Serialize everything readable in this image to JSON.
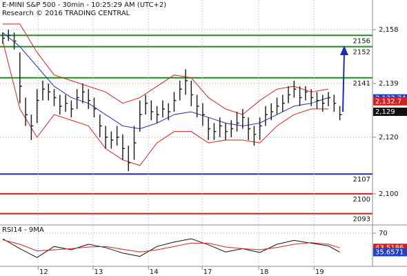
{
  "chart_data": [
    {
      "type": "ohlc",
      "title": "E-MINI S&P 500 - 30min - 10:25:29 AM (UTC+2)",
      "subtitle": "Research © 2016 TRADING CENTRAL",
      "xlim": [
        0,
        64
      ],
      "ylim": [
        2089,
        2168.5
      ],
      "yticks": [
        {
          "value": 2158,
          "label": "2,158"
        },
        {
          "value": 2139,
          "label": "2,139"
        },
        {
          "value": 2120,
          "label": "2,120"
        },
        {
          "value": 2100,
          "label": "2,100"
        }
      ],
      "grid": true,
      "bar_color": "#222222",
      "high": [
        2157,
        2158,
        2157,
        2150,
        2134,
        2128,
        2137,
        2140,
        2139,
        2137,
        2135,
        2135,
        2133,
        2137,
        2139,
        2137,
        2134,
        2128,
        2124,
        2122,
        2124,
        2121,
        2117,
        2124,
        2133,
        2135,
        2133,
        2131,
        2133,
        2132,
        2136,
        2140,
        2144,
        2140,
        2135,
        2132,
        2127,
        2125,
        2127,
        2125,
        2126,
        2129,
        2130,
        2127,
        2124,
        2127,
        2131,
        2132,
        2134,
        2135,
        2138,
        2140,
        2138,
        2138,
        2137,
        2136,
        2135,
        2136,
        2135,
        2131
      ],
      "low": [
        2153,
        2154,
        2151,
        2132,
        2124,
        2119,
        2125,
        2133,
        2133,
        2131,
        2128,
        2129,
        2127,
        2130,
        2132,
        2130,
        2127,
        2120,
        2116,
        2116,
        2117,
        2112,
        2108,
        2112,
        2122,
        2128,
        2126,
        2125,
        2127,
        2126,
        2129,
        2133,
        2135,
        2131,
        2127,
        2124,
        2119,
        2119,
        2120,
        2119,
        2120,
        2122,
        2123,
        2119,
        2117,
        2119,
        2124,
        2126,
        2128,
        2129,
        2132,
        2134,
        2131,
        2133,
        2131,
        2130,
        2129,
        2131,
        2129,
        2126
      ],
      "close": [
        2155,
        2156,
        2154,
        2138,
        2128,
        2124,
        2133,
        2137,
        2136,
        2134,
        2131,
        2132,
        2130,
        2134,
        2136,
        2133,
        2130,
        2124,
        2120,
        2119,
        2120,
        2116,
        2111,
        2118,
        2128,
        2132,
        2129,
        2128,
        2130,
        2129,
        2133,
        2137,
        2140,
        2135,
        2131,
        2128,
        2123,
        2122,
        2124,
        2122,
        2123,
        2125,
        2127,
        2123,
        2121,
        2124,
        2128,
        2129,
        2131,
        2132,
        2135,
        2137,
        2134,
        2136,
        2134,
        2133,
        2132,
        2134,
        2132,
        2128
      ],
      "bands": {
        "x": [
          0,
          3,
          6,
          9,
          12,
          15,
          18,
          21,
          24,
          27,
          30,
          33,
          36,
          39,
          42,
          45,
          48,
          51,
          54,
          57
        ],
        "series": [
          {
            "color": "#d42020",
            "values": [
              2160,
              2160,
              2150,
              2142,
              2140,
              2138,
              2136,
              2132,
              2134,
              2138,
              2142,
              2141,
              2134,
              2130,
              2128,
              2133,
              2137,
              2138,
              2136,
              2137
            ]
          },
          {
            "color": "#d42020",
            "values": [
              2154,
              2130,
              2120,
              2128,
              2126,
              2124,
              2116,
              2112,
              2110,
              2118,
              2122,
              2122,
              2118,
              2119,
              2119,
              2118,
              2124,
              2128,
              2130,
              2130
            ]
          },
          {
            "color": "#2233aa",
            "values": [
              2157,
              2152,
              2145,
              2138,
              2134,
              2132,
              2128,
              2124,
              2123,
              2125,
              2128,
              2129,
              2127,
              2125,
              2124,
              2125,
              2128,
              2131,
              2132,
              2134
            ]
          }
        ]
      },
      "levels": [
        {
          "value": 2156,
          "color": "#1e8c1e"
        },
        {
          "value": 2152,
          "color": "#1e8c1e"
        },
        {
          "value": 2141,
          "color": "#1e8c1e"
        },
        {
          "value": 2107,
          "color": "#1a2fb0"
        },
        {
          "value": 2100,
          "color": "#c81e1e"
        },
        {
          "value": 2093,
          "color": "#c81e1e"
        }
      ],
      "price_tags": [
        {
          "value": 2133.74,
          "label": "2,133.74",
          "color": "#2140c8"
        },
        {
          "value": 2132.7,
          "label": "2,132.7",
          "color": "#d42020"
        },
        {
          "value": 2129,
          "label": "2,129",
          "color": "#111111"
        }
      ]
    },
    {
      "type": "line",
      "title": "RSI14 - 9MA",
      "xlim": [
        0,
        64
      ],
      "ylim": [
        10,
        85
      ],
      "yticks": [
        70
      ],
      "grid": true,
      "x": [
        0,
        3,
        6,
        9,
        12,
        15,
        18,
        21,
        24,
        27,
        30,
        33,
        36,
        39,
        42,
        45,
        48,
        51,
        54,
        57,
        59
      ],
      "series": [
        {
          "color": "#111111",
          "values": [
            60,
            42,
            26,
            46,
            40,
            50,
            44,
            34,
            28,
            46,
            54,
            60,
            49,
            36,
            42,
            35,
            50,
            57,
            52,
            47,
            35.6571
          ]
        },
        {
          "color": "#d42020",
          "values": [
            58,
            50,
            38,
            40,
            42,
            45,
            46,
            41,
            36,
            40,
            46,
            52,
            52,
            45,
            42,
            40,
            44,
            50,
            53,
            50,
            43.5186
          ]
        }
      ],
      "price_tags": [
        {
          "value": 43.5186,
          "label": "43.5186",
          "color": "#d42020"
        },
        {
          "value": 35.6571,
          "label": "35.6571",
          "color": "#2140c8"
        }
      ],
      "xticks": [
        {
          "value": 6.2,
          "label": "12"
        },
        {
          "value": 15.8,
          "label": "13"
        },
        {
          "value": 25.5,
          "label": "14"
        },
        {
          "value": 34.9,
          "label": "17"
        },
        {
          "value": 44.8,
          "label": "18"
        },
        {
          "value": 54.5,
          "label": "19"
        }
      ]
    }
  ]
}
